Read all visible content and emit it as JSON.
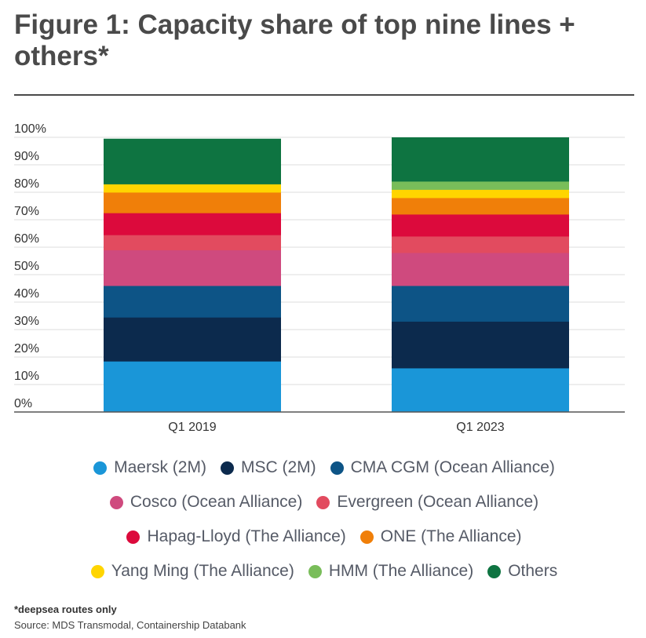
{
  "title": "Figure 1: Capacity share of top nine lines + others*",
  "footnote": "*deepsea routes only",
  "source": "Source: MDS Transmodal, Containership Databank",
  "colors": {
    "Maersk (2M)": "#1a96d8",
    "MSC (2M)": "#0c2a4d",
    "CMA CGM (Ocean Alliance)": "#0d5486",
    "Cosco (Ocean Alliance)": "#cf4a7e",
    "Evergreen (Ocean Alliance)": "#e24b5f",
    "Hapag-Lloyd (The Alliance)": "#dc0a3c",
    "ONE (The Alliance)": "#f07f09",
    "Yang Ming (The Alliance)": "#ffd500",
    "HMM (The Alliance)": "#79bd5a",
    "Others": "#0e7441"
  },
  "chart_data": {
    "type": "bar",
    "stacked": true,
    "categories": [
      "Q1 2019",
      "Q1 2023"
    ],
    "yticks": [
      "0%",
      "10%",
      "20%",
      "30%",
      "40%",
      "50%",
      "60%",
      "70%",
      "80%",
      "90%",
      "100%"
    ],
    "ylim": [
      0,
      100
    ],
    "grid": true,
    "legend": "bottom",
    "series": [
      {
        "name": "Maersk (2M)",
        "values": [
          18.5,
          16
        ]
      },
      {
        "name": "MSC (2M)",
        "values": [
          16,
          17
        ]
      },
      {
        "name": "CMA CGM (Ocean Alliance)",
        "values": [
          11.5,
          13
        ]
      },
      {
        "name": "Cosco (Ocean Alliance)",
        "values": [
          13,
          12
        ]
      },
      {
        "name": "Evergreen (Ocean Alliance)",
        "values": [
          5.5,
          6
        ]
      },
      {
        "name": "Hapag-Lloyd (The Alliance)",
        "values": [
          8,
          8
        ]
      },
      {
        "name": "ONE (The Alliance)",
        "values": [
          7.5,
          6
        ]
      },
      {
        "name": "Yang Ming (The Alliance)",
        "values": [
          3,
          3
        ]
      },
      {
        "name": "HMM (The Alliance)",
        "values": [
          0,
          3
        ]
      },
      {
        "name": "Others",
        "values": [
          16.5,
          16
        ]
      }
    ]
  },
  "legend_rows": [
    [
      "Maersk (2M)",
      "MSC (2M)",
      "CMA CGM (Ocean Alliance)"
    ],
    [
      "Cosco (Ocean Alliance)",
      "Evergreen (Ocean Alliance)"
    ],
    [
      "Hapag-Lloyd (The Alliance)",
      "ONE (The Alliance)"
    ],
    [
      "Yang Ming (The Alliance)",
      "HMM (The Alliance)",
      "Others"
    ]
  ]
}
